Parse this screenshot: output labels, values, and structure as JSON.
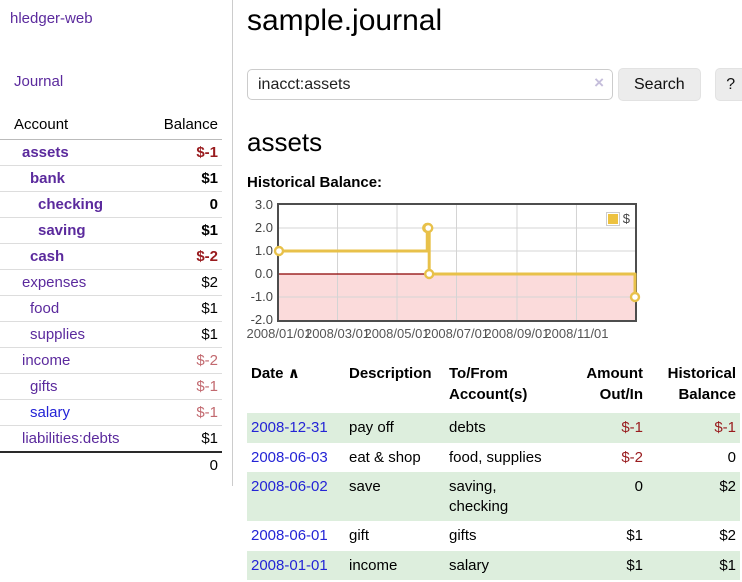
{
  "colors": {
    "link_purple": "#5b2a9d",
    "link_blue": "#2424d6",
    "negative_strong": "#991b1e",
    "negative_soft": "#c2696f",
    "row_green": "#ddeedd",
    "chart_series": "#e8c14a",
    "chart_negative_area": "#fbdbdb",
    "chart_zero_line": "#8b0000",
    "grid_line": "#d4d4d4"
  },
  "sidebar": {
    "brand": "hledger-web",
    "nav_journal": "Journal",
    "accounts_table": {
      "header_account": "Account",
      "header_balance": "Balance",
      "rows": [
        {
          "account": "assets",
          "balance": "$-1",
          "indent": 0,
          "bold": true,
          "negative": "strong"
        },
        {
          "account": "bank",
          "balance": "$1",
          "indent": 1,
          "bold": true
        },
        {
          "account": "checking",
          "balance": "0",
          "indent": 2,
          "bold": true
        },
        {
          "account": "saving",
          "balance": "$1",
          "indent": 2,
          "bold": true
        },
        {
          "account": "cash",
          "balance": "$-2",
          "indent": 1,
          "bold": true,
          "negative": "strong"
        },
        {
          "account": "expenses",
          "balance": "$2",
          "indent": 0,
          "bold": false
        },
        {
          "account": "food",
          "balance": "$1",
          "indent": 1,
          "bold": false
        },
        {
          "account": "supplies",
          "balance": "$1",
          "indent": 1,
          "bold": false
        },
        {
          "account": "income",
          "balance": "$-2",
          "indent": 0,
          "bold": false,
          "negative": "soft"
        },
        {
          "account": "gifts",
          "balance": "$-1",
          "indent": 1,
          "bold": false,
          "negative": "soft"
        },
        {
          "account": "salary",
          "balance": "$-1",
          "indent": 1,
          "bold": false,
          "negative": "soft",
          "link_style": "blue"
        },
        {
          "account": "liabilities:debts",
          "balance": "$1",
          "indent": 0,
          "bold": false
        }
      ],
      "total": "0"
    }
  },
  "header": {
    "title": "sample.journal"
  },
  "search": {
    "value": "inacct:assets",
    "clear_icon": "×",
    "button_label": "Search",
    "help_label": "?"
  },
  "account_page": {
    "heading": "assets",
    "chart_label": "Historical Balance:"
  },
  "chart_data": {
    "type": "line",
    "step": true,
    "title": "Historical Balance",
    "series": [
      {
        "name": "$",
        "color": "#e8c14a",
        "points": [
          [
            "2008-01-01",
            1
          ],
          [
            "2008-06-01",
            2
          ],
          [
            "2008-06-02",
            2
          ],
          [
            "2008-06-03",
            0
          ],
          [
            "2008-12-31",
            -1
          ]
        ]
      }
    ],
    "x_ticks": [
      "2008/01/01",
      "2008/03/01",
      "2008/05/01",
      "2008/07/01",
      "2008/09/01",
      "2008/11/01"
    ],
    "y_ticks": [
      3.0,
      2.0,
      1.0,
      0.0,
      -1.0,
      -2.0
    ],
    "y_tick_labels": [
      "3.0",
      "2.0",
      "1.0",
      "0.0",
      "-1.0",
      "-2.0"
    ],
    "xlim": [
      "2008-01-01",
      "2008-12-31"
    ],
    "ylim": [
      -2,
      3
    ],
    "grid": true,
    "legend": "$",
    "legend_position": "top-right",
    "negative_region_shaded": true
  },
  "register_table": {
    "headers": {
      "date": "Date",
      "sort_icon": "∧",
      "description": "Description",
      "accounts": "To/From\nAccount(s)",
      "amount": "Amount\nOut/In",
      "balance": "Historical\nBalance"
    },
    "rows": [
      {
        "date": "2008-12-31",
        "description": "pay off",
        "accounts": "debts",
        "amount": "$-1",
        "amount_negative": true,
        "balance": "$-1",
        "balance_negative": true
      },
      {
        "date": "2008-06-03",
        "description": "eat & shop",
        "accounts": "food, supplies",
        "amount": "$-2",
        "amount_negative": true,
        "balance": "0",
        "balance_negative": false
      },
      {
        "date": "2008-06-02",
        "description": "save",
        "accounts": "saving,\nchecking",
        "amount": "0",
        "amount_negative": false,
        "balance": "$2",
        "balance_negative": false
      },
      {
        "date": "2008-06-01",
        "description": "gift",
        "accounts": "gifts",
        "amount": "$1",
        "amount_negative": false,
        "balance": "$2",
        "balance_negative": false
      },
      {
        "date": "2008-01-01",
        "description": "income",
        "accounts": "salary",
        "amount": "$1",
        "amount_negative": false,
        "balance": "$1",
        "balance_negative": false
      }
    ]
  }
}
